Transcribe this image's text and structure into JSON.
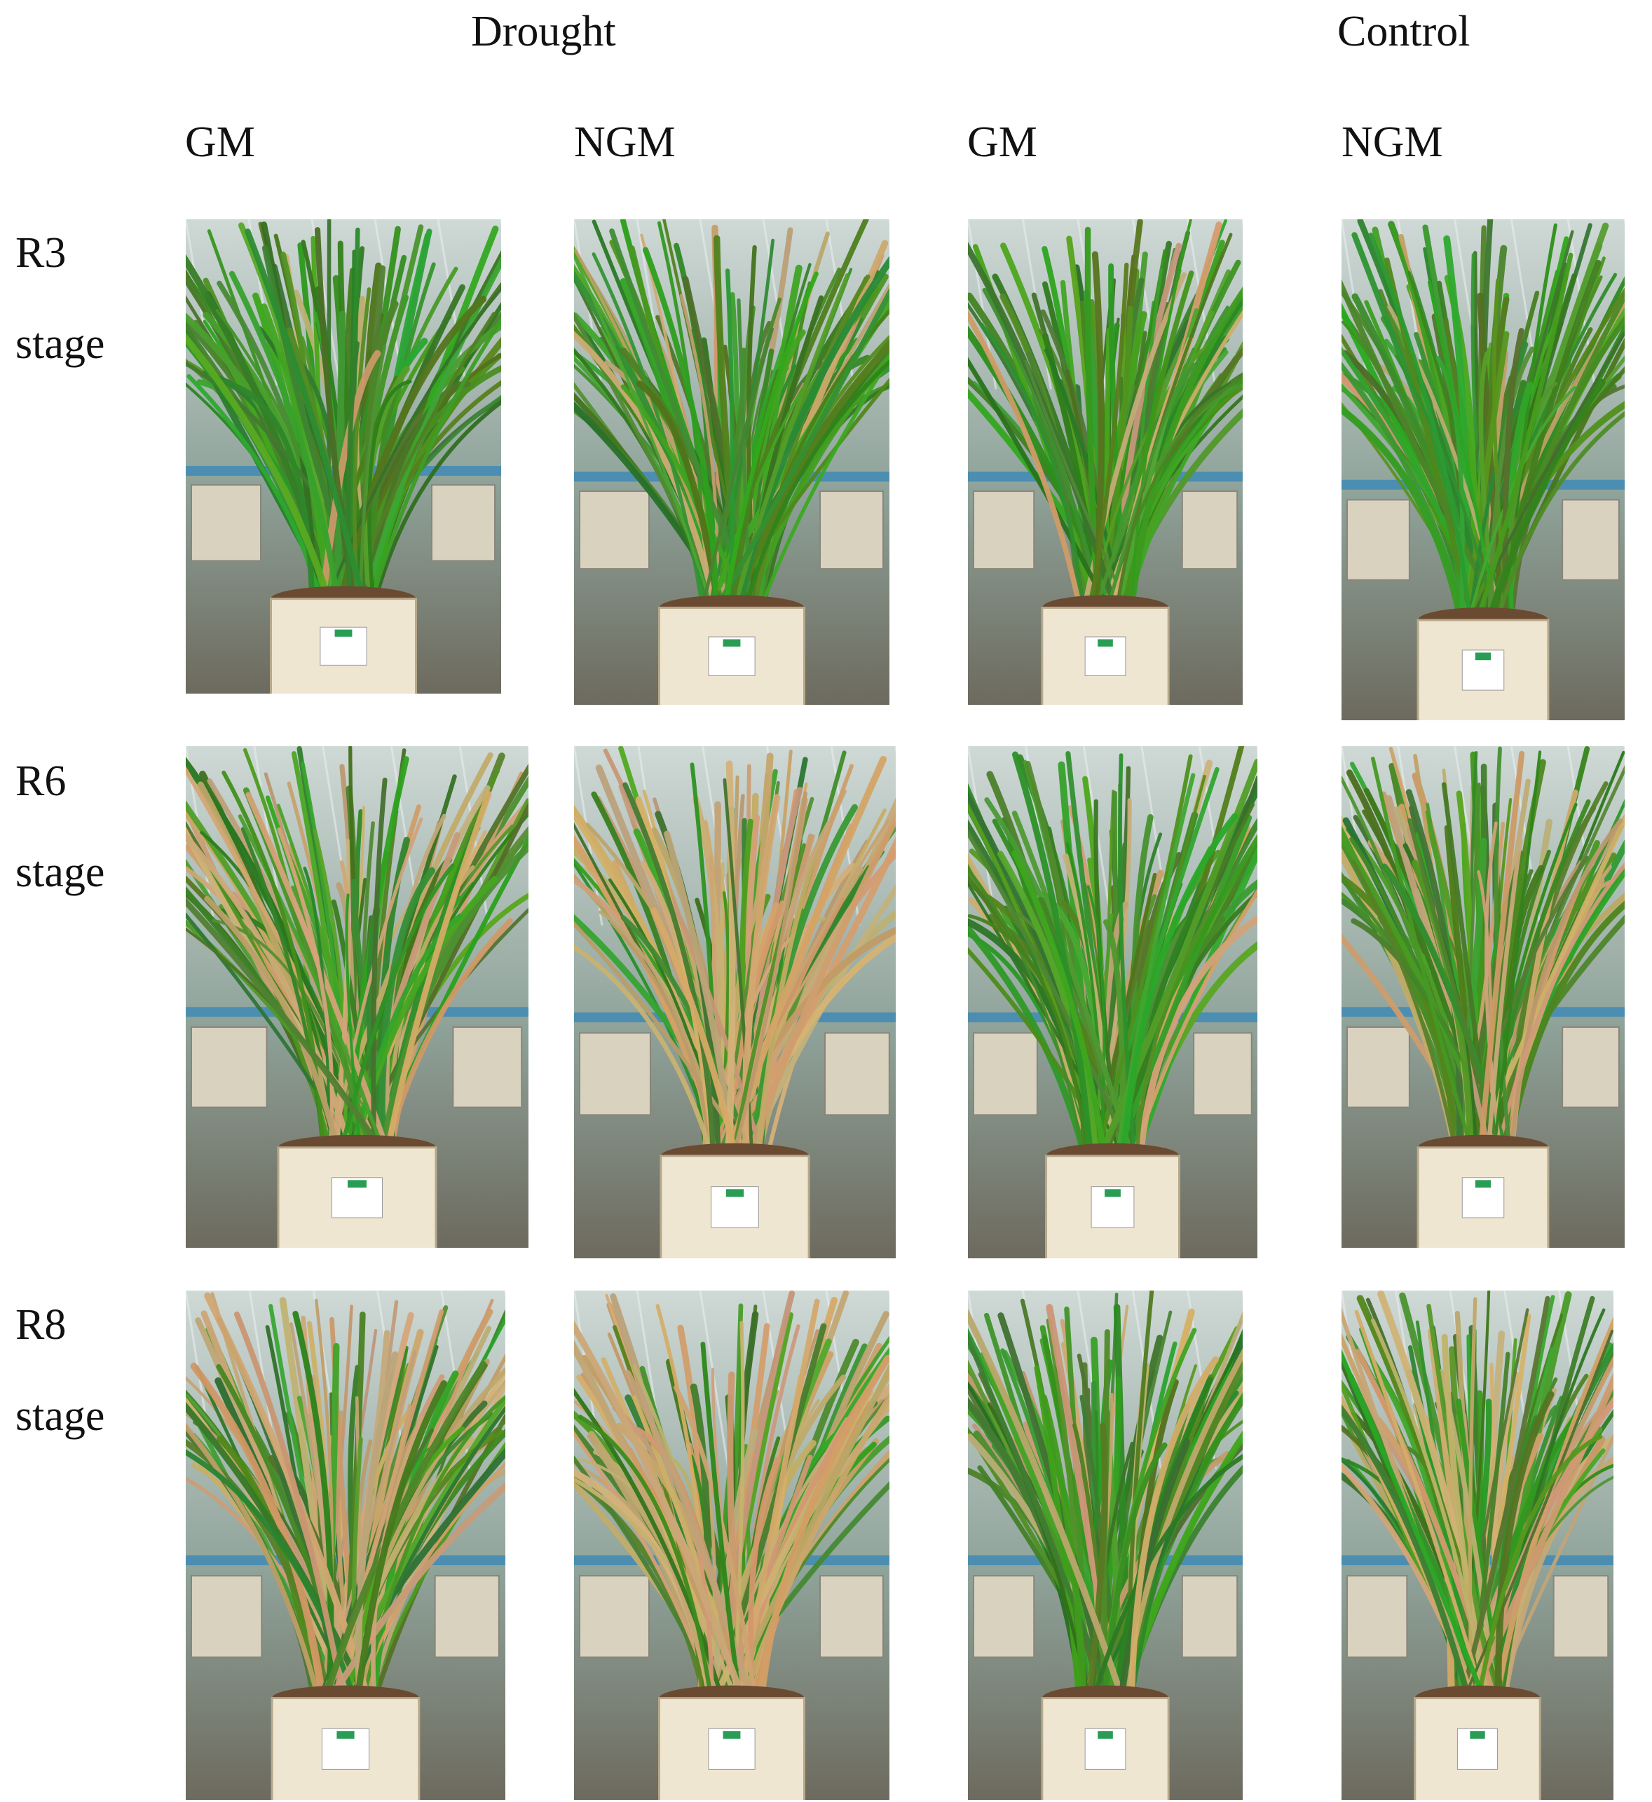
{
  "header": {
    "group_labels": [
      "Drought",
      "Control"
    ],
    "genotype_labels": [
      "GM",
      "NGM",
      "GM",
      "NGM"
    ]
  },
  "rows": [
    {
      "stage": "R3",
      "suffix": "stage",
      "panels": [
        {
          "condition": "Drought",
          "genotype": "GM",
          "dry_fraction": 0.05
        },
        {
          "condition": "Drought",
          "genotype": "NGM",
          "dry_fraction": 0.1
        },
        {
          "condition": "Control",
          "genotype": "GM",
          "dry_fraction": 0.05
        },
        {
          "condition": "Control",
          "genotype": "NGM",
          "dry_fraction": 0.05
        }
      ]
    },
    {
      "stage": "R6",
      "suffix": "stage",
      "panels": [
        {
          "condition": "Drought",
          "genotype": "GM",
          "dry_fraction": 0.35
        },
        {
          "condition": "Drought",
          "genotype": "NGM",
          "dry_fraction": 0.75
        },
        {
          "condition": "Control",
          "genotype": "GM",
          "dry_fraction": 0.1
        },
        {
          "condition": "Control",
          "genotype": "NGM",
          "dry_fraction": 0.25
        }
      ]
    },
    {
      "stage": "R8",
      "suffix": "stage",
      "panels": [
        {
          "condition": "Drought",
          "genotype": "GM",
          "dry_fraction": 0.45
        },
        {
          "condition": "Drought",
          "genotype": "NGM",
          "dry_fraction": 0.7
        },
        {
          "condition": "Control",
          "genotype": "GM",
          "dry_fraction": 0.15
        },
        {
          "condition": "Control",
          "genotype": "NGM",
          "dry_fraction": 0.35
        }
      ]
    }
  ],
  "colors": {
    "green_leaf": "#3f8f2a",
    "dry_leaf": "#c9a977",
    "pot": "#efe6d2",
    "background_glass": "#b9c6c0"
  }
}
